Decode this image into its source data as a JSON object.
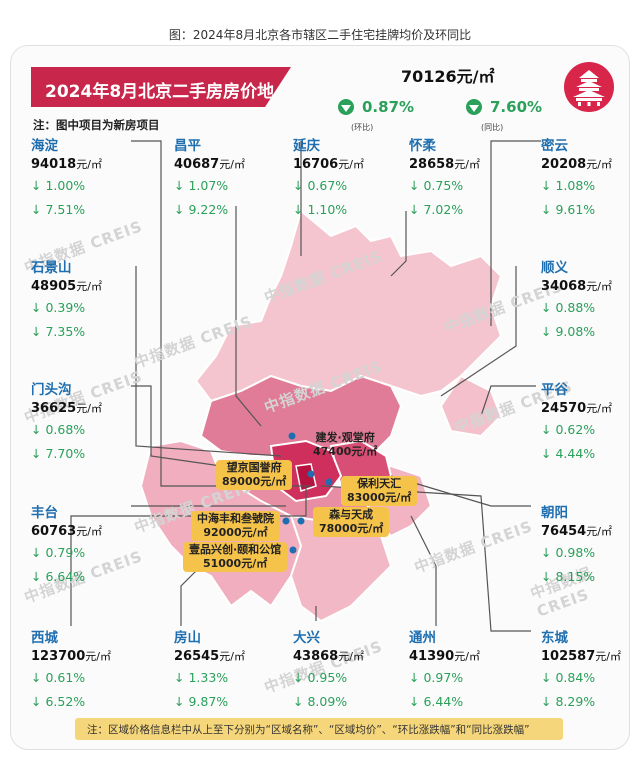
{
  "caption": "图：2024年8月北京各市辖区二手住宅挂牌均价及环同比",
  "title": "2024年8月北京二手房房价地图",
  "map_note": "注：图中项目为新房项目",
  "city_summary": {
    "avg_price": "70126元/㎡",
    "mom_change": "0.87%",
    "mom_label": "(环比)",
    "yoy_change": "7.60%",
    "yoy_label": "(同比)"
  },
  "unit": "元/㎡",
  "districts": [
    {
      "name": "海淀",
      "price": "94018",
      "mom": "1.00%",
      "yoy": "7.51%"
    },
    {
      "name": "昌平",
      "price": "40687",
      "mom": "1.07%",
      "yoy": "9.22%"
    },
    {
      "name": "延庆",
      "price": "16706",
      "mom": "0.67%",
      "yoy": "1.10%"
    },
    {
      "name": "怀柔",
      "price": "28658",
      "mom": "0.75%",
      "yoy": "7.02%"
    },
    {
      "name": "密云",
      "price": "20208",
      "mom": "1.08%",
      "yoy": "9.61%"
    },
    {
      "name": "石景山",
      "price": "48905",
      "mom": "0.39%",
      "yoy": "7.35%"
    },
    {
      "name": "顺义",
      "price": "34068",
      "mom": "0.88%",
      "yoy": "9.08%"
    },
    {
      "name": "门头沟",
      "price": "36625",
      "mom": "0.68%",
      "yoy": "7.70%"
    },
    {
      "name": "平谷",
      "price": "24570",
      "mom": "0.62%",
      "yoy": "4.44%"
    },
    {
      "name": "丰台",
      "price": "60763",
      "mom": "0.79%",
      "yoy": "6.64%"
    },
    {
      "name": "朝阳",
      "price": "76454",
      "mom": "0.98%",
      "yoy": "8.15%"
    },
    {
      "name": "西城",
      "price": "123700",
      "mom": "0.61%",
      "yoy": "6.52%"
    },
    {
      "name": "房山",
      "price": "26545",
      "mom": "1.33%",
      "yoy": "9.87%"
    },
    {
      "name": "大兴",
      "price": "43868",
      "mom": "0.95%",
      "yoy": "8.09%"
    },
    {
      "name": "通州",
      "price": "41390",
      "mom": "0.97%",
      "yoy": "6.44%"
    },
    {
      "name": "东城",
      "price": "102587",
      "mom": "0.84%",
      "yoy": "8.29%"
    }
  ],
  "projects": [
    {
      "name": "建发·观堂府",
      "price": "47400元/㎡"
    },
    {
      "name": "望京国誉府",
      "price": "89000元/㎡"
    },
    {
      "name": "保利天汇",
      "price": "83000元/㎡"
    },
    {
      "name": "中海丰和叁號院",
      "price": "92000元/㎡"
    },
    {
      "name": "森与天成",
      "price": "78000元/㎡"
    },
    {
      "name": "壹品兴创·颐和公馆",
      "price": "51000元/㎡"
    }
  ],
  "watermark": "中指数据 CREIS",
  "footer_note": "注：区域价格信息栏中从上至下分别为“区域名称”、“区域均价”、“环比涨跌幅”和“同比涨跌幅”",
  "colors": {
    "brand": "#c8264a",
    "down": "#2aa05a",
    "name": "#1f6fb0",
    "project_tag": "#f6c34a"
  }
}
